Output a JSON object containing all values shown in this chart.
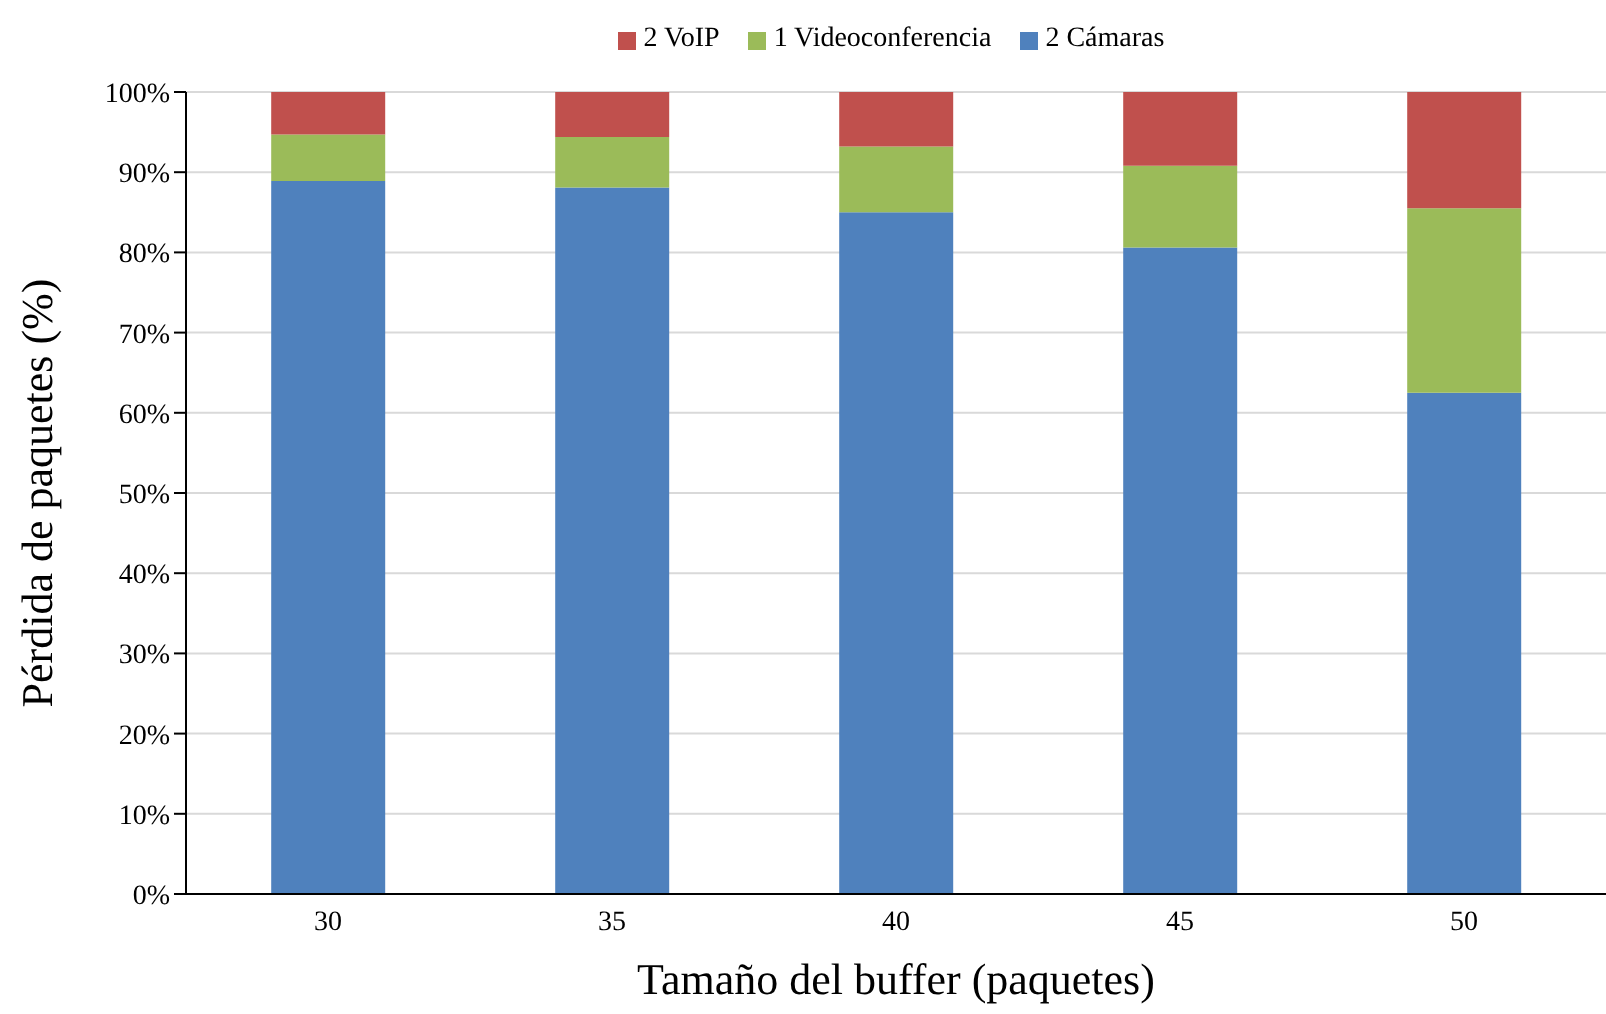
{
  "chart_data": {
    "type": "bar",
    "stacked": true,
    "xlabel": "Tamaño del buffer (paquetes)",
    "ylabel": "Pérdida de paquetes (%)",
    "categories": [
      "30",
      "35",
      "40",
      "45",
      "50"
    ],
    "series": [
      {
        "name": "2 Cámaras",
        "color": "#4f81bd",
        "values": [
          88.9,
          88.1,
          85.0,
          80.6,
          62.5
        ]
      },
      {
        "name": "1 Videoconferencia",
        "color": "#9bbb59",
        "values": [
          5.8,
          6.3,
          8.2,
          10.2,
          23.0
        ]
      },
      {
        "name": "2 VoIP",
        "color": "#c0504d",
        "values": [
          5.3,
          5.6,
          6.8,
          9.2,
          14.5
        ]
      }
    ],
    "ylim": [
      0,
      100
    ],
    "yticks": [
      {
        "value": 0,
        "label": "0%"
      },
      {
        "value": 10,
        "label": "10%"
      },
      {
        "value": 20,
        "label": "20%"
      },
      {
        "value": 30,
        "label": "30%"
      },
      {
        "value": 40,
        "label": "40%"
      },
      {
        "value": 50,
        "label": "50%"
      },
      {
        "value": 60,
        "label": "60%"
      },
      {
        "value": 70,
        "label": "70%"
      },
      {
        "value": 80,
        "label": "80%"
      },
      {
        "value": 90,
        "label": "90%"
      },
      {
        "value": 100,
        "label": "100%"
      }
    ],
    "grid": "y",
    "legend": "top"
  }
}
